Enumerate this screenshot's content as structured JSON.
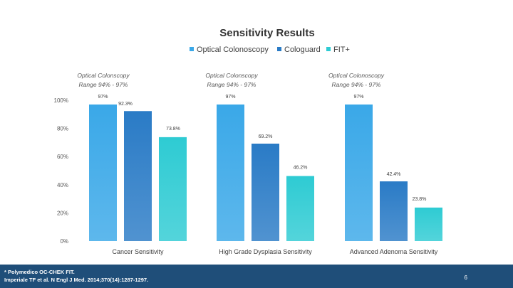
{
  "chart_data": {
    "type": "bar",
    "title": "Sensitivity Results",
    "categories": [
      "Cancer Sensitivity",
      "High Grade Dysplasia Sensitivity",
      "Advanced Adenoma Sensitivity"
    ],
    "series": [
      {
        "name": "Optical Colonoscopy",
        "values": [
          97,
          97,
          97
        ],
        "labels": [
          "97%",
          "97%",
          "97%"
        ],
        "color": "#3aa8e8"
      },
      {
        "name": "Cologuard",
        "values": [
          92.3,
          69.2,
          42.4
        ],
        "labels": [
          "92.3%",
          "69.2%",
          "42.4%"
        ],
        "color": "#2a7bc6"
      },
      {
        "name": "FIT+",
        "values": [
          73.8,
          46.2,
          23.8
        ],
        "labels": [
          "73.8%",
          "46.2%",
          "23.8%"
        ],
        "color": "#2ecbd3"
      }
    ],
    "yticks": [
      "0%",
      "20%",
      "40%",
      "60%",
      "80%",
      "100%"
    ],
    "ylim": [
      0,
      100
    ],
    "legend_position": "top-right",
    "grid": false,
    "annotations": [
      {
        "line1": "Optical Colonscopy",
        "line2": "Range 94% - 97%"
      },
      {
        "line1": "Optical Colonscopy",
        "line2": "Range 94% - 97%"
      },
      {
        "line1": "Optical Colonoscopy",
        "line2": "Range 94% - 97%"
      }
    ]
  },
  "footer": {
    "ref1": "* Polymedico OC-CHEK FIT.",
    "ref2": "Imperiale TF et al. N Engl J Med. 2014;370(14):1287-1297.",
    "page": "6"
  }
}
